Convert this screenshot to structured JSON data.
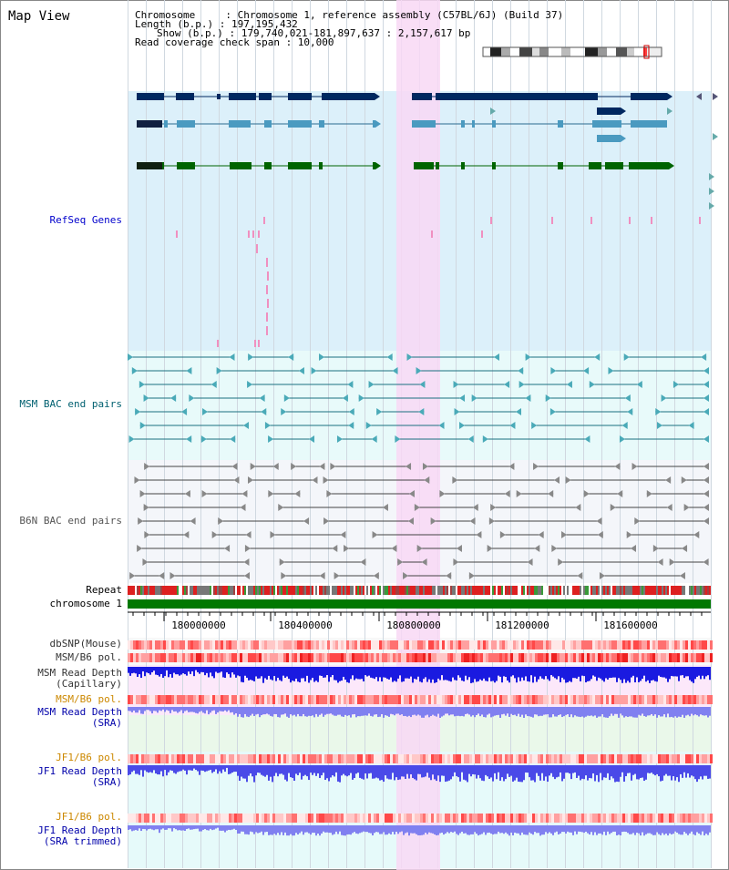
{
  "page": {
    "title": "Map View"
  },
  "info": {
    "chromosome_line": "Chromosome     : Chromosome 1, reference assembly (C57BL/6J) (Build 37)",
    "length_line": "Length (b.p.) : 197,195,432",
    "show_line": "Show (b.p.) : 179,740,021-181,897,637 : 2,157,617 bp",
    "coverage_line": "Read coverage check span : 10,000"
  },
  "tracks": {
    "refseq": {
      "label": "RefSeq Genes",
      "color": "#0000cc"
    },
    "msm_bac": {
      "label": "MSM BAC end pairs",
      "color": "#006070"
    },
    "b6n_bac": {
      "label": "B6N BAC end pairs",
      "color": "#555555"
    },
    "repeat": {
      "label": "Repeat"
    },
    "chromosome": {
      "label": "chromosome 1"
    },
    "dbsnp": {
      "label": "dbSNP(Mouse)"
    },
    "msm_b6_pol_1": {
      "label": "MSM/B6 pol."
    },
    "msm_depth_cap": {
      "label": "MSM Read Depth\n(Capillary)"
    },
    "msm_b6_pol_2": {
      "label": "MSM/B6 pol.",
      "color": "#cc8800"
    },
    "msm_depth_sra": {
      "label": "MSM Read Depth\n(SRA)",
      "color": "#0000aa"
    },
    "jf1_b6_pol_1": {
      "label": "JF1/B6 pol.",
      "color": "#cc8800"
    },
    "jf1_depth_sra": {
      "label": "JF1 Read Depth\n(SRA)",
      "color": "#0000aa"
    },
    "jf1_b6_pol_2": {
      "label": "JF1/B6 pol.",
      "color": "#cc8800"
    },
    "jf1_depth_trim": {
      "label": "JF1 Read Depth\n(SRA trimmed)",
      "color": "#0000aa"
    }
  },
  "axis": {
    "tick_labels": [
      "180000000",
      "180400000",
      "180800000",
      "181200000",
      "181600000"
    ]
  },
  "colors": {
    "highlight": "#f8d8f4",
    "refseq_bg": "#dcf0fa",
    "msm_bg": "#e8fafa",
    "b6n_bg": "#f4f6fa",
    "gene_dark": "#002860",
    "gene_mid": "#4a9ac0",
    "gene_green": "#006400",
    "depth_blue": "#1a1ae0",
    "depth_light": "#8080f0"
  }
}
